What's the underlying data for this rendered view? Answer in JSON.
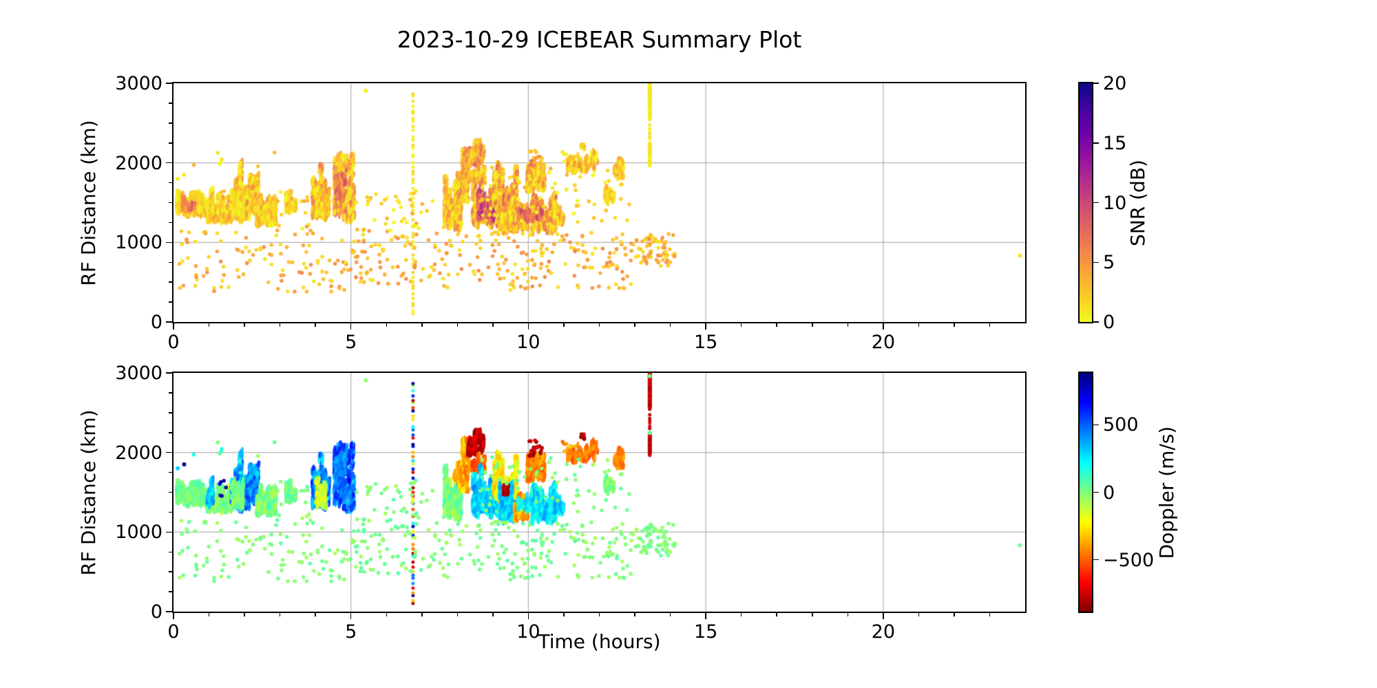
{
  "title": "2023-10-29 ICEBEAR Summary Plot",
  "axes": {
    "xlabel": "Time (hours)",
    "ylabel": "RF Distance (km)",
    "xlim": [
      0,
      24
    ],
    "ylim": [
      0,
      3000
    ],
    "xticks": [
      0,
      5,
      10,
      15,
      20
    ],
    "yticks": [
      0,
      1000,
      2000,
      3000
    ],
    "x_minor_step": 1,
    "y_minor_step": 250,
    "grid": true,
    "grid_color": "#b0b0b0",
    "spine_color": "#000000"
  },
  "colorbars": {
    "snr": {
      "label": "SNR (dB)",
      "range": [
        0,
        20
      ],
      "ticks": [
        0,
        5,
        10,
        15,
        20
      ],
      "colormap": "plasma_r"
    },
    "doppler": {
      "label": "Doppler (m/s)",
      "range": [
        -885,
        885
      ],
      "ticks": [
        -500,
        0,
        500
      ],
      "colormap": "jet_r"
    }
  },
  "colormaps": {
    "plasma": [
      "#0d0887",
      "#46039f",
      "#7201a8",
      "#9c179e",
      "#bd3786",
      "#d8576b",
      "#ed7953",
      "#fa9e3b",
      "#fdc926",
      "#f0f921"
    ],
    "jet": [
      "#00007f",
      "#0000ff",
      "#0080ff",
      "#00ffff",
      "#7dff7b",
      "#ffff00",
      "#ff8000",
      "#ff0000",
      "#7f0000"
    ]
  },
  "chart_data": {
    "type": "scatter",
    "title": "2023-10-29 ICEBEAR Summary Plot",
    "xlabel": "Time (hours)",
    "ylabel": "RF Distance (km)",
    "xlim": [
      0,
      24
    ],
    "ylim": [
      0,
      3000
    ],
    "panels": [
      {
        "id": "snr",
        "value_key": "snr",
        "colorbar_label": "SNR (dB)",
        "value_range": [
          0,
          20
        ],
        "colormap": "plasma_r"
      },
      {
        "id": "doppler",
        "value_key": "dop",
        "colorbar_label": "Doppler (m/s)",
        "value_range": [
          -885,
          885
        ],
        "colormap": "jet_r"
      }
    ],
    "events": [
      {
        "shape": "patch",
        "t": [
          0.08,
          0.95
        ],
        "rf": [
          1330,
          1680
        ],
        "snr": [
          0,
          4
        ],
        "dop": [
          -80,
          120
        ],
        "n": 380
      },
      {
        "shape": "patch",
        "t": [
          0.25,
          0.6
        ],
        "rf": [
          1400,
          1580
        ],
        "snr": [
          4,
          9
        ],
        "dop": [
          -60,
          60
        ],
        "n": 50
      },
      {
        "shape": "patch",
        "t": [
          0.95,
          1.62
        ],
        "rf": [
          1230,
          1620
        ],
        "snr": [
          0,
          5
        ],
        "dop": [
          -120,
          80
        ],
        "n": 340
      },
      {
        "shape": "patch",
        "t": [
          0.95,
          1.12
        ],
        "rf": [
          1300,
          1700
        ],
        "snr": [
          0,
          5
        ],
        "dop": [
          200,
          450
        ],
        "n": 55
      },
      {
        "shape": "dots",
        "t": [
          1.3,
          1.5
        ],
        "rf": [
          1450,
          1650
        ],
        "snr": [
          0,
          4
        ],
        "dop": [
          600,
          880
        ],
        "n": 6
      },
      {
        "shape": "patch",
        "t": [
          1.62,
          2.05
        ],
        "rf": [
          1250,
          2120
        ],
        "snr": [
          0,
          6
        ],
        "dop": [
          150,
          550
        ],
        "n": 290
      },
      {
        "shape": "patch",
        "t": [
          1.62,
          2.05
        ],
        "rf": [
          1250,
          1750
        ],
        "snr": [
          0,
          4
        ],
        "dop": [
          -80,
          100
        ],
        "n": 130
      },
      {
        "shape": "patch",
        "t": [
          2.05,
          2.4
        ],
        "rf": [
          1300,
          2150
        ],
        "snr": [
          0,
          6
        ],
        "dop": [
          250,
          620
        ],
        "n": 200
      },
      {
        "shape": "patch",
        "t": [
          2.33,
          2.9
        ],
        "rf": [
          1200,
          1620
        ],
        "snr": [
          0,
          5
        ],
        "dop": [
          -120,
          120
        ],
        "n": 290
      },
      {
        "shape": "patch",
        "t": [
          3.15,
          3.45
        ],
        "rf": [
          1380,
          1660
        ],
        "snr": [
          0,
          4
        ],
        "dop": [
          -60,
          120
        ],
        "n": 90
      },
      {
        "shape": "patch",
        "t": [
          3.9,
          4.4
        ],
        "rf": [
          1280,
          2120
        ],
        "snr": [
          0,
          7
        ],
        "dop": [
          250,
          620
        ],
        "n": 310
      },
      {
        "shape": "patch",
        "t": [
          4.0,
          4.32
        ],
        "rf": [
          1300,
          1720
        ],
        "snr": [
          0,
          5
        ],
        "dop": [
          -220,
          -60
        ],
        "n": 90
      },
      {
        "shape": "patch",
        "t": [
          4.52,
          5.1
        ],
        "rf": [
          1250,
          2130
        ],
        "snr": [
          0,
          8
        ],
        "dop": [
          280,
          680
        ],
        "n": 350
      },
      {
        "shape": "patch",
        "t": [
          4.55,
          4.85
        ],
        "rf": [
          1500,
          1900
        ],
        "snr": [
          4,
          10
        ],
        "dop": [
          350,
          550
        ],
        "n": 55
      },
      {
        "shape": "patch",
        "t": [
          7.62,
          8.12
        ],
        "rf": [
          1150,
          1870
        ],
        "snr": [
          0,
          6
        ],
        "dop": [
          -140,
          140
        ],
        "n": 310
      },
      {
        "shape": "patch",
        "t": [
          7.9,
          8.18
        ],
        "rf": [
          1640,
          1870
        ],
        "snr": [
          0,
          6
        ],
        "dop": [
          -460,
          -260
        ],
        "n": 80
      },
      {
        "shape": "patch",
        "t": [
          8.02,
          8.32
        ],
        "rf": [
          1500,
          2300
        ],
        "snr": [
          0,
          7
        ],
        "dop": [
          -520,
          -220
        ],
        "n": 150
      },
      {
        "shape": "patch",
        "t": [
          8.28,
          8.75
        ],
        "rf": [
          1950,
          2300
        ],
        "snr": [
          1,
          9
        ],
        "dop": [
          -880,
          -660
        ],
        "n": 150
      },
      {
        "shape": "patch",
        "t": [
          8.33,
          8.8
        ],
        "rf": [
          1740,
          2000
        ],
        "snr": [
          0,
          7
        ],
        "dop": [
          -620,
          -360
        ],
        "n": 110
      },
      {
        "shape": "patch",
        "t": [
          8.42,
          9.2
        ],
        "rf": [
          1180,
          1850
        ],
        "snr": [
          0,
          8
        ],
        "dop": [
          140,
          460
        ],
        "n": 500
      },
      {
        "shape": "patch",
        "t": [
          8.55,
          9.05
        ],
        "rf": [
          1250,
          1700
        ],
        "snr": [
          6,
          13
        ],
        "dop": [
          200,
          400
        ],
        "n": 90
      },
      {
        "shape": "patch",
        "t": [
          9.0,
          9.7
        ],
        "rf": [
          1350,
          2010
        ],
        "snr": [
          0,
          8
        ],
        "dop": [
          -360,
          -110
        ],
        "n": 380
      },
      {
        "shape": "patch",
        "t": [
          9.18,
          9.65
        ],
        "rf": [
          1100,
          1660
        ],
        "snr": [
          0,
          7
        ],
        "dop": [
          140,
          420
        ],
        "n": 310
      },
      {
        "shape": "patch",
        "t": [
          9.3,
          9.45
        ],
        "rf": [
          1480,
          1660
        ],
        "snr": [
          3,
          10
        ],
        "dop": [
          -880,
          -740
        ],
        "n": 28
      },
      {
        "shape": "patch",
        "t": [
          9.6,
          10.0
        ],
        "rf": [
          1140,
          1560
        ],
        "snr": [
          0,
          7
        ],
        "dop": [
          -520,
          -260
        ],
        "n": 190
      },
      {
        "shape": "patch",
        "t": [
          9.95,
          10.48
        ],
        "rf": [
          1600,
          2160
        ],
        "snr": [
          0,
          7
        ],
        "dop": [
          -560,
          -310
        ],
        "n": 240
      },
      {
        "shape": "dots",
        "t": [
          10.0,
          10.4
        ],
        "rf": [
          1950,
          2180
        ],
        "snr": [
          2,
          8
        ],
        "dop": [
          -880,
          -700
        ],
        "n": 22
      },
      {
        "shape": "patch",
        "t": [
          10.05,
          10.78
        ],
        "rf": [
          1100,
          1620
        ],
        "snr": [
          0,
          8
        ],
        "dop": [
          110,
          420
        ],
        "n": 350
      },
      {
        "shape": "patch",
        "t": [
          9.7,
          10.4
        ],
        "rf": [
          1250,
          1520
        ],
        "snr": [
          5,
          12
        ],
        "dop": [
          150,
          350
        ],
        "n": 60
      },
      {
        "shape": "patch",
        "t": [
          10.72,
          11.0
        ],
        "rf": [
          1200,
          1520
        ],
        "snr": [
          0,
          6
        ],
        "dop": [
          150,
          420
        ],
        "n": 130
      },
      {
        "shape": "patch",
        "t": [
          11.1,
          11.95
        ],
        "rf": [
          1880,
          2160
        ],
        "snr": [
          0,
          6
        ],
        "dop": [
          -560,
          -360
        ],
        "n": 150
      },
      {
        "shape": "dots",
        "t": [
          11.45,
          11.6
        ],
        "rf": [
          2150,
          2260
        ],
        "snr": [
          1,
          6
        ],
        "dop": [
          -860,
          -740
        ],
        "n": 7
      },
      {
        "shape": "patch",
        "t": [
          12.15,
          12.42
        ],
        "rf": [
          1500,
          1730
        ],
        "snr": [
          0,
          4
        ],
        "dop": [
          -110,
          110
        ],
        "n": 70
      },
      {
        "shape": "patch",
        "t": [
          12.42,
          12.68
        ],
        "rf": [
          1800,
          2110
        ],
        "snr": [
          0,
          6
        ],
        "dop": [
          -520,
          -320
        ],
        "n": 100
      },
      {
        "shape": "vline",
        "t": [
          6.75
        ],
        "rf": [
          60,
          2920
        ],
        "snr": [
          0,
          1.8
        ],
        "dop": [
          -880,
          880
        ],
        "n": 52
      },
      {
        "shape": "vline",
        "t": [
          13.42
        ],
        "rf": [
          2560,
          3000
        ],
        "snr": [
          0,
          1.8
        ],
        "dop": [
          -880,
          -640
        ],
        "n": 70,
        "dense": true
      },
      {
        "shape": "vline",
        "t": [
          13.42
        ],
        "rf": [
          2290,
          2490
        ],
        "snr": [
          0,
          1.8
        ],
        "dop": [
          -860,
          -700
        ],
        "n": 6
      },
      {
        "shape": "vline",
        "t": [
          13.42
        ],
        "rf": [
          1980,
          2230
        ],
        "snr": [
          0,
          1.8
        ],
        "dop": [
          -860,
          -700
        ],
        "n": 26,
        "dense": true
      },
      {
        "shape": "point",
        "t": [
          13.42
        ],
        "rf": [
          2960
        ],
        "snr": [
          0.4
        ],
        "dop": [
          25
        ],
        "n": 1
      },
      {
        "shape": "point",
        "t": [
          13.42
        ],
        "rf": [
          2245
        ],
        "snr": [
          0.4
        ],
        "dop": [
          40
        ],
        "n": 1
      },
      {
        "shape": "point",
        "t": [
          0.3
        ],
        "rf": [
          1850
        ],
        "snr": [
          0.6
        ],
        "dop": [
          850
        ],
        "n": 1
      },
      {
        "shape": "point",
        "t": [
          0.12
        ],
        "rf": [
          1800
        ],
        "snr": [
          0.6
        ],
        "dop": [
          300
        ],
        "n": 1
      },
      {
        "shape": "point",
        "t": [
          5.42
        ],
        "rf": [
          2905
        ],
        "snr": [
          0.5
        ],
        "dop": [
          -25
        ],
        "n": 1
      },
      {
        "shape": "point",
        "t": [
          23.85
        ],
        "rf": [
          835
        ],
        "snr": [
          1.2
        ],
        "dop": [
          25
        ],
        "n": 1
      },
      {
        "shape": "dots",
        "t": [
          0.15,
          5.2
        ],
        "rf": [
          380,
          1150
        ],
        "snr": [
          1,
          6
        ],
        "dop": [
          -70,
          70
        ],
        "n": 120
      },
      {
        "shape": "dots",
        "t": [
          2.9,
          3.95
        ],
        "rf": [
          1150,
          1650
        ],
        "snr": [
          0,
          5
        ],
        "dop": [
          -70,
          70
        ],
        "n": 18
      },
      {
        "shape": "dots",
        "t": [
          5.15,
          7.62
        ],
        "rf": [
          400,
          1150
        ],
        "snr": [
          1,
          6
        ],
        "dop": [
          -70,
          70
        ],
        "n": 70
      },
      {
        "shape": "dots",
        "t": [
          5.15,
          7.62
        ],
        "rf": [
          1150,
          1650
        ],
        "snr": [
          0,
          5
        ],
        "dop": [
          -70,
          70
        ],
        "n": 40
      },
      {
        "shape": "dots",
        "t": [
          7.62,
          12.95
        ],
        "rf": [
          400,
          1150
        ],
        "snr": [
          1,
          6
        ],
        "dop": [
          -70,
          70
        ],
        "n": 170
      },
      {
        "shape": "dots",
        "t": [
          12.95,
          14.15
        ],
        "rf": [
          700,
          1120
        ],
        "snr": [
          1,
          6
        ],
        "dop": [
          -70,
          70
        ],
        "n": 70
      },
      {
        "shape": "dots",
        "t": [
          8.6,
          12.9
        ],
        "rf": [
          1250,
          1950
        ],
        "snr": [
          0,
          4
        ],
        "dop": [
          -60,
          60
        ],
        "n": 70
      },
      {
        "shape": "dots",
        "t": [
          0.3,
          2.9
        ],
        "rf": [
          1700,
          2150
        ],
        "snr": [
          0,
          4
        ],
        "dop": [
          -60,
          200
        ],
        "n": 8
      },
      {
        "shape": "dots",
        "t": [
          10.9,
          11.35
        ],
        "rf": [
          1900,
          2150
        ],
        "snr": [
          0,
          4
        ],
        "dop": [
          -500,
          -300
        ],
        "n": 10
      }
    ]
  }
}
